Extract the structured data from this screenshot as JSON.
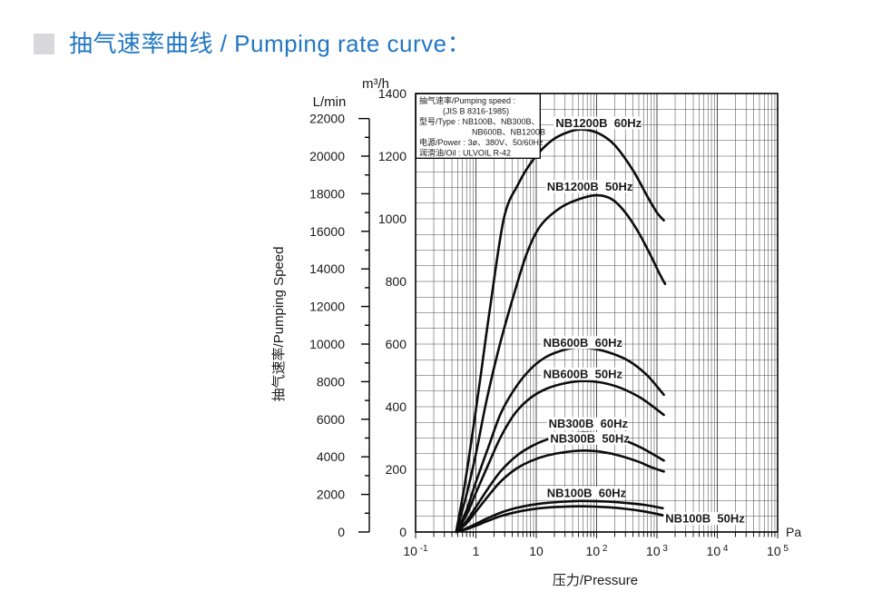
{
  "header": {
    "title": "抽气速率曲线 / Pumping rate curve：",
    "accent_color": "#2277c3",
    "bullet_color": "#d8d8da"
  },
  "chart_data": {
    "type": "line",
    "x_axis": {
      "label": "压力/Pressure",
      "unit": "Pa",
      "scale": "log",
      "range_pa": [
        0.1,
        100000
      ],
      "decades": [
        -1,
        0,
        1,
        2,
        3,
        4,
        5
      ],
      "tick_labels": [
        {
          "base": "10",
          "exp": "-1"
        },
        {
          "base": "1"
        },
        {
          "base": "10"
        },
        {
          "base": "10",
          "exp": "2"
        },
        {
          "base": "10",
          "exp": "3"
        },
        {
          "base": "10",
          "exp": "4"
        },
        {
          "base": "10",
          "exp": "5"
        }
      ]
    },
    "y_axis_m3h": {
      "unit": "m³/h",
      "range": [
        0,
        1400
      ],
      "major_ticks": [
        0,
        200,
        400,
        600,
        800,
        1000,
        1200,
        1400
      ],
      "grid_step": 50
    },
    "y_axis_lmin": {
      "unit": "L/min",
      "range": [
        0,
        22000
      ],
      "major_ticks": [
        0,
        2000,
        4000,
        6000,
        8000,
        10000,
        12000,
        14000,
        16000,
        18000,
        20000,
        22000
      ],
      "minor_step": 1000,
      "lmin_per_m3h": 16.6667
    },
    "y_title": "抽气速率/Pumping Speed",
    "legend_box": {
      "lines": [
        {
          "text": "抽气速率/Pumping speed :",
          "indent": 0
        },
        {
          "text": "(JIS B 8316-1985)",
          "indent": 26
        },
        {
          "text": "型号/Type : NB100B、NB300B、",
          "indent": 0
        },
        {
          "text": "NB600B、NB1200B",
          "indent": 58
        },
        {
          "text": "电源/Power : 3ø、380V、50/60Hz",
          "indent": 0
        },
        {
          "text": "润滑油/Oil : ULVOIL R-42",
          "indent": 0
        }
      ]
    },
    "series": [
      {
        "name": "NB1200B 60Hz",
        "label": "NB1200B  60Hz",
        "label_anchor": {
          "pa": 21,
          "m3h": 1293
        },
        "points_pa_m3h": [
          [
            0.47,
            0
          ],
          [
            0.65,
            150
          ],
          [
            0.9,
            330
          ],
          [
            1.2,
            500
          ],
          [
            1.7,
            710
          ],
          [
            2.9,
            1000
          ],
          [
            5,
            1110
          ],
          [
            9,
            1190
          ],
          [
            18,
            1250
          ],
          [
            35,
            1278
          ],
          [
            60,
            1285
          ],
          [
            110,
            1272
          ],
          [
            200,
            1235
          ],
          [
            400,
            1155
          ],
          [
            700,
            1070
          ],
          [
            1000,
            1020
          ],
          [
            1300,
            995
          ]
        ]
      },
      {
        "name": "NB1200B 50Hz",
        "label": "NB1200B  50Hz",
        "label_anchor": {
          "pa": 15,
          "m3h": 1090
        },
        "points_pa_m3h": [
          [
            0.47,
            0
          ],
          [
            0.7,
            120
          ],
          [
            1,
            250
          ],
          [
            1.5,
            420
          ],
          [
            2.5,
            600
          ],
          [
            4,
            740
          ],
          [
            7,
            890
          ],
          [
            12,
            980
          ],
          [
            25,
            1035
          ],
          [
            50,
            1062
          ],
          [
            100,
            1075
          ],
          [
            180,
            1062
          ],
          [
            300,
            1020
          ],
          [
            500,
            955
          ],
          [
            800,
            880
          ],
          [
            1100,
            825
          ],
          [
            1365,
            792
          ]
        ]
      },
      {
        "name": "NB600B 60Hz",
        "label": "NB600B  60Hz",
        "label_anchor": {
          "pa": 13,
          "m3h": 592
        },
        "points_pa_m3h": [
          [
            0.47,
            0
          ],
          [
            0.7,
            70
          ],
          [
            1,
            160
          ],
          [
            1.6,
            270
          ],
          [
            2.6,
            380
          ],
          [
            4.5,
            460
          ],
          [
            8,
            520
          ],
          [
            14,
            557
          ],
          [
            25,
            578
          ],
          [
            45,
            588
          ],
          [
            90,
            585
          ],
          [
            180,
            570
          ],
          [
            350,
            545
          ],
          [
            650,
            505
          ],
          [
            1000,
            465
          ],
          [
            1300,
            438
          ]
        ]
      },
      {
        "name": "NB600B 50Hz",
        "label": "NB600B  50Hz",
        "label_anchor": {
          "pa": 13,
          "m3h": 492
        },
        "points_pa_m3h": [
          [
            0.47,
            0
          ],
          [
            0.7,
            55
          ],
          [
            1,
            125
          ],
          [
            1.6,
            215
          ],
          [
            2.6,
            305
          ],
          [
            4.5,
            380
          ],
          [
            8,
            428
          ],
          [
            15,
            458
          ],
          [
            30,
            475
          ],
          [
            60,
            482
          ],
          [
            120,
            477
          ],
          [
            250,
            460
          ],
          [
            500,
            432
          ],
          [
            800,
            405
          ],
          [
            1300,
            374
          ]
        ]
      },
      {
        "name": "NB300B 60Hz",
        "label": "NB300B  60Hz",
        "label_anchor": {
          "pa": 16,
          "m3h": 333
        },
        "points_pa_m3h": [
          [
            0.47,
            0
          ],
          [
            0.7,
            35
          ],
          [
            1,
            80
          ],
          [
            1.6,
            140
          ],
          [
            2.6,
            195
          ],
          [
            4.5,
            240
          ],
          [
            8,
            272
          ],
          [
            15,
            295
          ],
          [
            30,
            310
          ],
          [
            60,
            317
          ],
          [
            120,
            312
          ],
          [
            250,
            297
          ],
          [
            500,
            273
          ],
          [
            800,
            252
          ],
          [
            1300,
            228
          ]
        ]
      },
      {
        "name": "NB300B 50Hz",
        "label": "NB300B  50Hz",
        "label_anchor": {
          "pa": 17,
          "m3h": 286
        },
        "points_pa_m3h": [
          [
            0.47,
            0
          ],
          [
            0.7,
            28
          ],
          [
            1,
            65
          ],
          [
            1.6,
            115
          ],
          [
            2.6,
            162
          ],
          [
            4.5,
            200
          ],
          [
            8,
            226
          ],
          [
            15,
            244
          ],
          [
            30,
            255
          ],
          [
            60,
            260
          ],
          [
            120,
            256
          ],
          [
            250,
            243
          ],
          [
            500,
            224
          ],
          [
            800,
            207
          ],
          [
            1300,
            193
          ]
        ]
      },
      {
        "name": "NB100B 60Hz",
        "label": "NB100B  60Hz",
        "label_anchor": {
          "pa": 15,
          "m3h": 112
        },
        "points_pa_m3h": [
          [
            0.47,
            0
          ],
          [
            0.7,
            12
          ],
          [
            1,
            26
          ],
          [
            1.6,
            45
          ],
          [
            2.6,
            62
          ],
          [
            4.5,
            76
          ],
          [
            8,
            86
          ],
          [
            15,
            93
          ],
          [
            30,
            97
          ],
          [
            60,
            99
          ],
          [
            150,
            97
          ],
          [
            300,
            93
          ],
          [
            600,
            87
          ],
          [
            1250,
            76
          ]
        ]
      },
      {
        "name": "NB100B 50Hz",
        "label": "NB100B  50Hz",
        "label_anchor": {
          "pa": 1380,
          "m3h": 30
        },
        "points_pa_m3h": [
          [
            0.47,
            0
          ],
          [
            0.7,
            9
          ],
          [
            1,
            20
          ],
          [
            1.6,
            36
          ],
          [
            2.6,
            51
          ],
          [
            4.5,
            63
          ],
          [
            8,
            72
          ],
          [
            15,
            78
          ],
          [
            30,
            81
          ],
          [
            60,
            82
          ],
          [
            150,
            79
          ],
          [
            300,
            74
          ],
          [
            600,
            66
          ],
          [
            1300,
            53
          ]
        ]
      }
    ],
    "style": {
      "curve_color": "#0d0d0d",
      "grid_color": "#4d4d4d",
      "border_color": "#000000"
    }
  }
}
